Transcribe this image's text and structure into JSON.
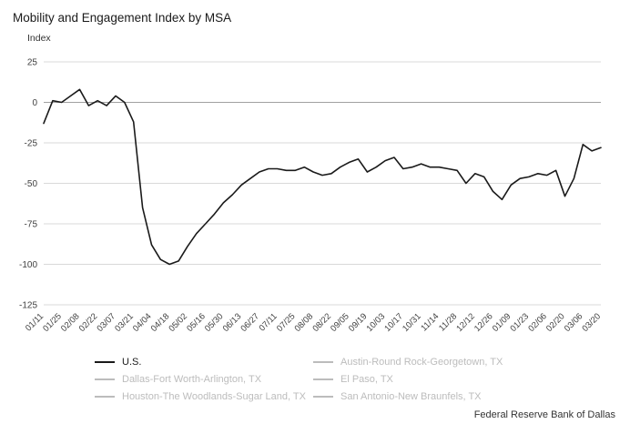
{
  "title": "Mobility and Engagement Index by MSA",
  "y_axis_title": "Index",
  "source": "Federal Reserve Bank of Dallas",
  "colors": {
    "us_line": "#1a1a1a",
    "inactive_legend": "#bcbcbc",
    "grid": "#d9d9d9",
    "zero_line": "#a0a0a0",
    "axis_text": "#404040"
  },
  "legend": [
    {
      "label": "U.S.",
      "active": true
    },
    {
      "label": "Dallas-Fort Worth-Arlington, TX",
      "active": false
    },
    {
      "label": "Houston-The Woodlands-Sugar Land, TX",
      "active": false
    },
    {
      "label": "Austin-Round Rock-Georgetown, TX",
      "active": false
    },
    {
      "label": "El Paso, TX",
      "active": false
    },
    {
      "label": "San Antonio-New Braunfels, TX",
      "active": false
    }
  ],
  "chart_data": {
    "type": "line",
    "title": "Mobility and Engagement Index by MSA",
    "xlabel": "",
    "ylabel": "Index",
    "ylim": [
      -125,
      25
    ],
    "y_ticks": [
      25,
      0,
      -25,
      -50,
      -75,
      -100,
      -125
    ],
    "grid": "horizontal",
    "legend_position": "bottom",
    "x_interval": "weekly (labels every 2 weeks)",
    "x_tick_labels": [
      "01/11",
      "01/25",
      "02/08",
      "02/22",
      "03/07",
      "03/21",
      "04/04",
      "04/18",
      "05/02",
      "05/16",
      "05/30",
      "06/13",
      "06/27",
      "07/11",
      "07/25",
      "08/08",
      "08/22",
      "09/05",
      "09/19",
      "10/03",
      "10/17",
      "10/31",
      "11/14",
      "11/28",
      "12/12",
      "12/26",
      "01/09",
      "01/23",
      "02/06",
      "02/20",
      "03/06",
      "03/20"
    ],
    "series": [
      {
        "name": "U.S.",
        "values": [
          -13,
          1,
          0,
          4,
          8,
          -2,
          1,
          -2,
          4,
          0,
          -12,
          -65,
          -88,
          -97,
          -100,
          -98,
          -89,
          -81,
          -75,
          -69,
          -62,
          -57,
          -51,
          -47,
          -43,
          -41,
          -41,
          -42,
          -42,
          -40,
          -43,
          -45,
          -44,
          -40,
          -37,
          -35,
          -43,
          -40,
          -36,
          -34,
          -41,
          -40,
          -38,
          -40,
          -40,
          -41,
          -42,
          -50,
          -44,
          -46,
          -55,
          -60,
          -51,
          -47,
          -46,
          -44,
          -45,
          -42,
          -58,
          -47,
          -26,
          -30,
          -28
        ]
      }
    ],
    "inactive_series_names": [
      "Dallas-Fort Worth-Arlington, TX",
      "Houston-The Woodlands-Sugar Land, TX",
      "Austin-Round Rock-Georgetown, TX",
      "El Paso, TX",
      "San Antonio-New Braunfels, TX"
    ]
  }
}
